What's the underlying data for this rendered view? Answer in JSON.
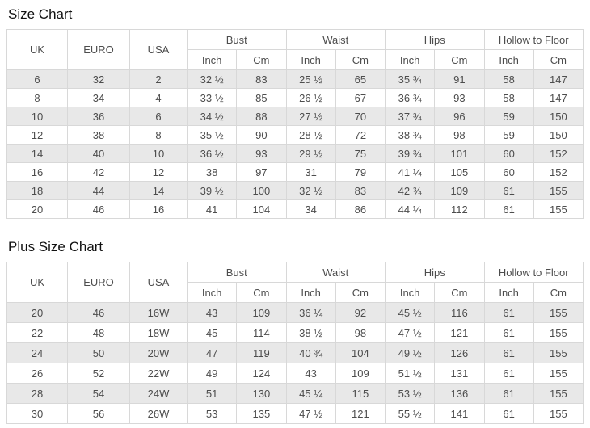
{
  "colors": {
    "stripe_row": "#e8e8e8",
    "table_border": "#d8d8d8",
    "cell_text": "#4d4d4d",
    "title_text": "#111111",
    "background": "#ffffff"
  },
  "chart_data": [
    {
      "type": "table",
      "title": "Size Chart",
      "id_columns": [
        "UK",
        "EURO",
        "USA"
      ],
      "column_groups": [
        "Bust",
        "Waist",
        "Hips",
        "Hollow to Floor"
      ],
      "unit_columns": [
        "Inch",
        "Cm"
      ],
      "rows": [
        [
          "6",
          "32",
          "2",
          "32 ½",
          "83",
          "25 ½",
          "65",
          "35 ¾",
          "91",
          "58",
          "147"
        ],
        [
          "8",
          "34",
          "4",
          "33 ½",
          "85",
          "26 ½",
          "67",
          "36 ¾",
          "93",
          "58",
          "147"
        ],
        [
          "10",
          "36",
          "6",
          "34 ½",
          "88",
          "27 ½",
          "70",
          "37 ¾",
          "96",
          "59",
          "150"
        ],
        [
          "12",
          "38",
          "8",
          "35 ½",
          "90",
          "28 ½",
          "72",
          "38 ¾",
          "98",
          "59",
          "150"
        ],
        [
          "14",
          "40",
          "10",
          "36 ½",
          "93",
          "29 ½",
          "75",
          "39 ¾",
          "101",
          "60",
          "152"
        ],
        [
          "16",
          "42",
          "12",
          "38",
          "97",
          "31",
          "79",
          "41 ¼",
          "105",
          "60",
          "152"
        ],
        [
          "18",
          "44",
          "14",
          "39 ½",
          "100",
          "32 ½",
          "83",
          "42 ¾",
          "109",
          "61",
          "155"
        ],
        [
          "20",
          "46",
          "16",
          "41",
          "104",
          "34",
          "86",
          "44 ¼",
          "112",
          "61",
          "155"
        ]
      ]
    },
    {
      "type": "table",
      "title": "Plus Size Chart",
      "id_columns": [
        "UK",
        "EURO",
        "USA"
      ],
      "column_groups": [
        "Bust",
        "Waist",
        "Hips",
        "Hollow to Floor"
      ],
      "unit_columns": [
        "Inch",
        "Cm"
      ],
      "rows": [
        [
          "20",
          "46",
          "16W",
          "43",
          "109",
          "36 ¼",
          "92",
          "45 ½",
          "116",
          "61",
          "155"
        ],
        [
          "22",
          "48",
          "18W",
          "45",
          "114",
          "38 ½",
          "98",
          "47 ½",
          "121",
          "61",
          "155"
        ],
        [
          "24",
          "50",
          "20W",
          "47",
          "119",
          "40 ¾",
          "104",
          "49 ½",
          "126",
          "61",
          "155"
        ],
        [
          "26",
          "52",
          "22W",
          "49",
          "124",
          "43",
          "109",
          "51 ½",
          "131",
          "61",
          "155"
        ],
        [
          "28",
          "54",
          "24W",
          "51",
          "130",
          "45 ¼",
          "115",
          "53 ½",
          "136",
          "61",
          "155"
        ],
        [
          "30",
          "56",
          "26W",
          "53",
          "135",
          "47 ½",
          "121",
          "55 ½",
          "141",
          "61",
          "155"
        ]
      ]
    }
  ]
}
